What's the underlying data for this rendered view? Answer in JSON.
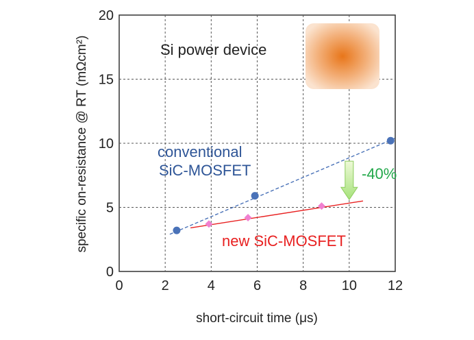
{
  "chart_data": {
    "type": "scatter",
    "xlabel": "short-circuit time (μs)",
    "ylabel": "specific on-resistance @ RT (mΩcm²)",
    "xlim": [
      0,
      12
    ],
    "ylim": [
      0,
      20
    ],
    "xticks": [
      "0",
      "2",
      "4",
      "6",
      "8",
      "10",
      "12"
    ],
    "yticks": [
      "0",
      "5",
      "10",
      "15",
      "20"
    ],
    "grid": true,
    "series": [
      {
        "name": "conventional SiC-MOSFET",
        "label_line1": "conventional",
        "label_line2": "SiC-MOSFET",
        "color": "#4a72b8",
        "marker": "circle",
        "points": [
          [
            2.5,
            3.2
          ],
          [
            5.9,
            5.9
          ],
          [
            11.8,
            10.2
          ]
        ],
        "trend": [
          [
            2.2,
            2.9
          ],
          [
            12.0,
            10.4
          ]
        ]
      },
      {
        "name": "new SiC-MOSFET",
        "color": "#e82020",
        "marker": "diamond",
        "marker_color": "#f080d0",
        "points": [
          [
            3.9,
            3.7
          ],
          [
            5.6,
            4.2
          ],
          [
            8.8,
            5.1
          ]
        ],
        "trend": [
          [
            3.1,
            3.4
          ],
          [
            10.6,
            5.5
          ]
        ]
      }
    ],
    "annotations": {
      "si_label": "Si power device",
      "reduction_label": "-40%",
      "reduction_color": "#22a84a",
      "arrow_x": 10.0,
      "arrow_from_y": 8.6,
      "arrow_to_y": 5.6,
      "si_box_color": "#e8761a"
    }
  }
}
